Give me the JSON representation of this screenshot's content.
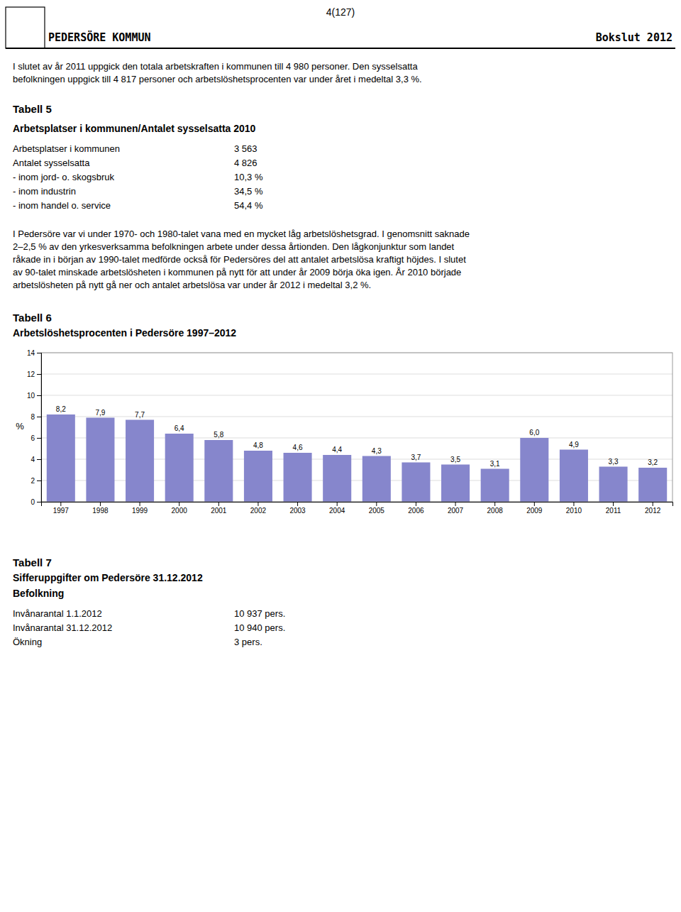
{
  "page_number": "4(127)",
  "header_left": "PEDERSÖRE  KOMMUN",
  "header_right": "Bokslut 2012",
  "intro_text_lines": [
    "I slutet av år 2011 uppgick den totala arbetskraften i kommunen till 4 980 personer. Den sysselsatta",
    "befolkningen uppgick till 4 817 personer och arbetslöshetsprocenten var under året i medeltal 3,3 %."
  ],
  "tabell5_title": "Tabell 5",
  "tabell5_subtitle": "Arbetsplatser i kommunen/Antalet sysselsatta 2010",
  "tabell5_rows": [
    [
      "Arbetsplatser i kommunen",
      "3 563"
    ],
    [
      "Antalet sysselsatta",
      "4 826"
    ],
    [
      "- inom jord- o. skogsbruk",
      "10,3 %"
    ],
    [
      "- inom industrin",
      "34,5 %"
    ],
    [
      "- inom handel o. service",
      "54,4 %"
    ]
  ],
  "tabell5_text_lines": [
    "I Pedersöre var vi under 1970- och 1980-talet vana med en mycket låg arbetslöshetsgrad. I genomsnitt saknade",
    "2–2,5 % av den yrkesverksamma befolkningen arbete under dessa årtionden. Den lågkonjunktur som landet",
    "råkade in i början av 1990-talet medförde också för Pedersöres del att antalet arbetslösa kraftigt höjdes. I slutet",
    "av 90-talet minskade arbetslösheten i kommunen på nytt för att under år 2009 börja öka igen. År 2010 började",
    "arbetslösheten på nytt gå ner och antalet arbetslösa var under år 2012 i medeltal 3,2 %."
  ],
  "chart_data": {
    "type": "bar",
    "title": "Tabell 6",
    "subtitle": "Arbetslöshetsprocenten i Pedersöre 1997–2012",
    "y_label": "%",
    "categories": [
      "1997",
      "1998",
      "1999",
      "2000",
      "2001",
      "2002",
      "2003",
      "2004",
      "2005",
      "2006",
      "2007",
      "2008",
      "2009",
      "2010",
      "2011",
      "2012"
    ],
    "values": [
      8.2,
      7.9,
      7.7,
      6.4,
      5.8,
      4.8,
      4.6,
      4.4,
      4.3,
      3.7,
      3.5,
      3.1,
      6.0,
      4.9,
      3.3,
      3.2
    ],
    "value_labels": [
      "8,2",
      "7,9",
      "7,7",
      "6,4",
      "5,8",
      "4,8",
      "4,6",
      "4,4",
      "4,3",
      "3,7",
      "3,5",
      "3,1",
      "6,0",
      "4,9",
      "3,3",
      "3,2"
    ],
    "data_labels": true,
    "color": "#8686cc",
    "ylim": [
      0,
      14
    ],
    "yticks": [
      0,
      2,
      4,
      6,
      8,
      10,
      12,
      14
    ],
    "grid": true
  },
  "tabell7_title": "Tabell 7",
  "tabell7_subtitle": "Sifferuppgifter om Pedersöre 31.12.2012",
  "tabell7_section1": "Befolkning",
  "tabell7_rows": [
    [
      "Invånarantal 1.1.2012",
      "10 937 pers."
    ],
    [
      "Invånarantal 31.12.2012",
      "10 940 pers."
    ],
    [
      "Ökning",
      "3 pers."
    ]
  ]
}
